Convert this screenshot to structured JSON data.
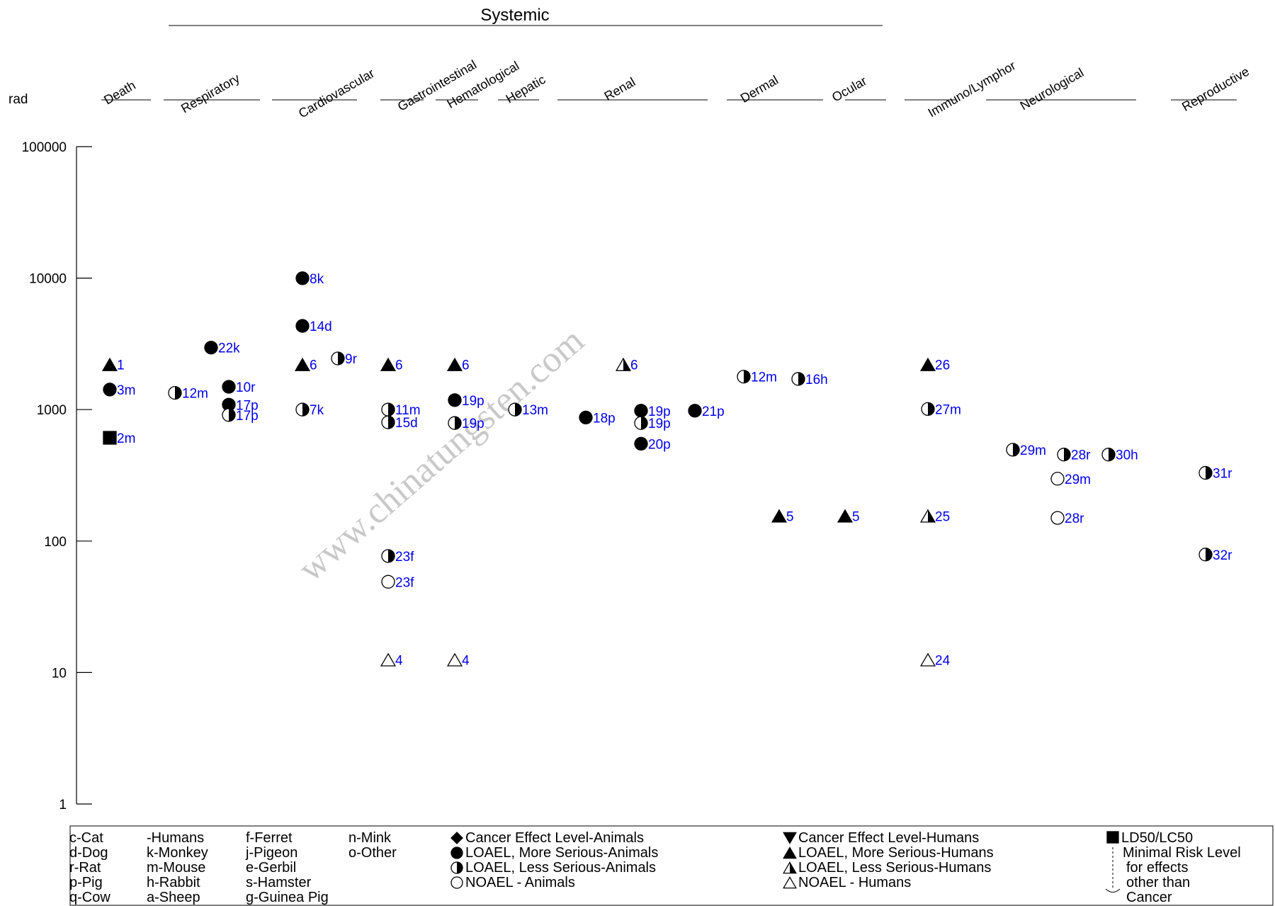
{
  "chart_data": {
    "type": "scatter",
    "title": "Systemic",
    "ylabel": "rad",
    "yscale": "log",
    "ylim": [
      1,
      100000
    ],
    "yticks": [
      "100000",
      "10000",
      "1000",
      "100",
      "10",
      "1"
    ],
    "grid": false,
    "categories": [
      "Death",
      "Respiratory",
      "Cardiovascular",
      "Gastrointestinal",
      "Hematological",
      "Hepatic",
      "Renal",
      "Dermal",
      "Ocular",
      "Immuno/Lymphor",
      "Neurological",
      "Reproductive"
    ],
    "points": [
      {
        "col": 0,
        "y": 2200,
        "sym": "tri-full",
        "label": "1"
      },
      {
        "col": 0,
        "y": 1420,
        "sym": "circle-full",
        "label": "3m"
      },
      {
        "col": 0,
        "y": 610,
        "sym": "square",
        "label": "2m"
      },
      {
        "col": 1,
        "y": 1340,
        "sym": "circle-half",
        "label": "12m"
      },
      {
        "col": 1,
        "y": 2960,
        "sym": "circle-full",
        "label": "22k"
      },
      {
        "col": 1,
        "y": 1490,
        "sym": "circle-full",
        "label": "10r"
      },
      {
        "col": 1,
        "y": 1090,
        "sym": "circle-full",
        "label": "17p"
      },
      {
        "col": 1,
        "y": 910,
        "sym": "circle-half",
        "label": "17p"
      },
      {
        "col": 2,
        "y": 9980,
        "sym": "circle-full",
        "label": "8k"
      },
      {
        "col": 2,
        "y": 4330,
        "sym": "circle-full",
        "label": "14d"
      },
      {
        "col": 2,
        "y": 2200,
        "sym": "tri-full",
        "label": "6"
      },
      {
        "col": 2,
        "y": 1000,
        "sym": "circle-half",
        "label": "7k"
      },
      {
        "col": 2,
        "y": 2450,
        "sym": "circle-half",
        "label": "9r"
      },
      {
        "col": 3,
        "y": 2200,
        "sym": "tri-full",
        "label": "6"
      },
      {
        "col": 3,
        "y": 1000,
        "sym": "circle-half",
        "label": "11m"
      },
      {
        "col": 3,
        "y": 800,
        "sym": "circle-half",
        "label": "15d"
      },
      {
        "col": 3,
        "y": 77,
        "sym": "circle-half",
        "label": "23f"
      },
      {
        "col": 3,
        "y": 49,
        "sym": "circle-open",
        "label": "23f"
      },
      {
        "col": 3,
        "y": 12.5,
        "sym": "tri-open",
        "label": "4"
      },
      {
        "col": 4,
        "y": 2200,
        "sym": "tri-full",
        "label": "6"
      },
      {
        "col": 4,
        "y": 1180,
        "sym": "circle-full",
        "label": "19p"
      },
      {
        "col": 4,
        "y": 790,
        "sym": "circle-half",
        "label": "19p"
      },
      {
        "col": 4,
        "y": 12.5,
        "sym": "tri-open",
        "label": "4"
      },
      {
        "col": 5,
        "y": 1000,
        "sym": "circle-half",
        "label": "13m"
      },
      {
        "col": 6,
        "y": 870,
        "sym": "circle-full",
        "label": "18p"
      },
      {
        "col": 6,
        "y": 2200,
        "sym": "tri-half",
        "label": "6"
      },
      {
        "col": 6,
        "y": 980,
        "sym": "circle-full",
        "label": "19p"
      },
      {
        "col": 6,
        "y": 790,
        "sym": "circle-half",
        "label": "19p"
      },
      {
        "col": 6,
        "y": 550,
        "sym": "circle-full",
        "label": "20p"
      },
      {
        "col": 6,
        "y": 980,
        "sym": "circle-full",
        "label": "21p"
      },
      {
        "col": 7,
        "y": 1780,
        "sym": "circle-half",
        "label": "12m"
      },
      {
        "col": 7,
        "y": 1710,
        "sym": "circle-half",
        "label": "16h"
      },
      {
        "col": 7,
        "y": 155,
        "sym": "tri-full",
        "label": "5"
      },
      {
        "col": 8,
        "y": 155,
        "sym": "tri-full",
        "label": "5"
      },
      {
        "col": 9,
        "y": 2200,
        "sym": "tri-full",
        "label": "26"
      },
      {
        "col": 9,
        "y": 1010,
        "sym": "circle-half",
        "label": "27m"
      },
      {
        "col": 9,
        "y": 155,
        "sym": "tri-half",
        "label": "25"
      },
      {
        "col": 9,
        "y": 12.5,
        "sym": "tri-open",
        "label": "24"
      },
      {
        "col": 10,
        "y": 495,
        "sym": "circle-half",
        "label": "29m"
      },
      {
        "col": 10,
        "y": 455,
        "sym": "circle-half",
        "label": "28r"
      },
      {
        "col": 10,
        "y": 298,
        "sym": "circle-open",
        "label": "29m"
      },
      {
        "col": 10,
        "y": 150,
        "sym": "circle-open",
        "label": "28r"
      },
      {
        "col": 10,
        "y": 455,
        "sym": "circle-half",
        "label": "30h"
      },
      {
        "col": 11,
        "y": 330,
        "sym": "circle-half",
        "label": "31r"
      },
      {
        "col": 11,
        "y": 79,
        "sym": "circle-half",
        "label": "32r"
      }
    ],
    "legend": {
      "species": [
        [
          "c-Cat",
          "d-Dog",
          "r-Rat",
          "p-Pig",
          "q-Cow"
        ],
        [
          "-Humans",
          "k-Monkey",
          "m-Mouse",
          "h-Rabbit",
          "a-Sheep"
        ],
        [
          "f-Ferret",
          "j-Pigeon",
          "e-Gerbil",
          "s-Hamster",
          "g-Guinea Pig"
        ],
        [
          "n-Mink",
          "o-Other"
        ]
      ],
      "animal_symbols": [
        {
          "sym": "diamond",
          "label": "Cancer Effect Level-Animals"
        },
        {
          "sym": "circle-full",
          "label": "LOAEL, More Serious-Animals"
        },
        {
          "sym": "circle-half",
          "label": "LOAEL, Less Serious-Animals"
        },
        {
          "sym": "circle-open",
          "label": "NOAEL - Animals"
        }
      ],
      "human_symbols": [
        {
          "sym": "tri-down",
          "label": "Cancer Effect Level-Humans"
        },
        {
          "sym": "tri-full",
          "label": "LOAEL, More Serious-Humans"
        },
        {
          "sym": "tri-half",
          "label": "LOAEL, Less Serious-Humans"
        },
        {
          "sym": "tri-open",
          "label": "NOAEL - Humans"
        }
      ],
      "other": {
        "ld50": "LD50/LC50",
        "mrl": [
          "Minimal Risk Level",
          "for effects",
          "other than",
          "Cancer"
        ]
      }
    }
  },
  "watermark": "www.chinatungsten.com"
}
